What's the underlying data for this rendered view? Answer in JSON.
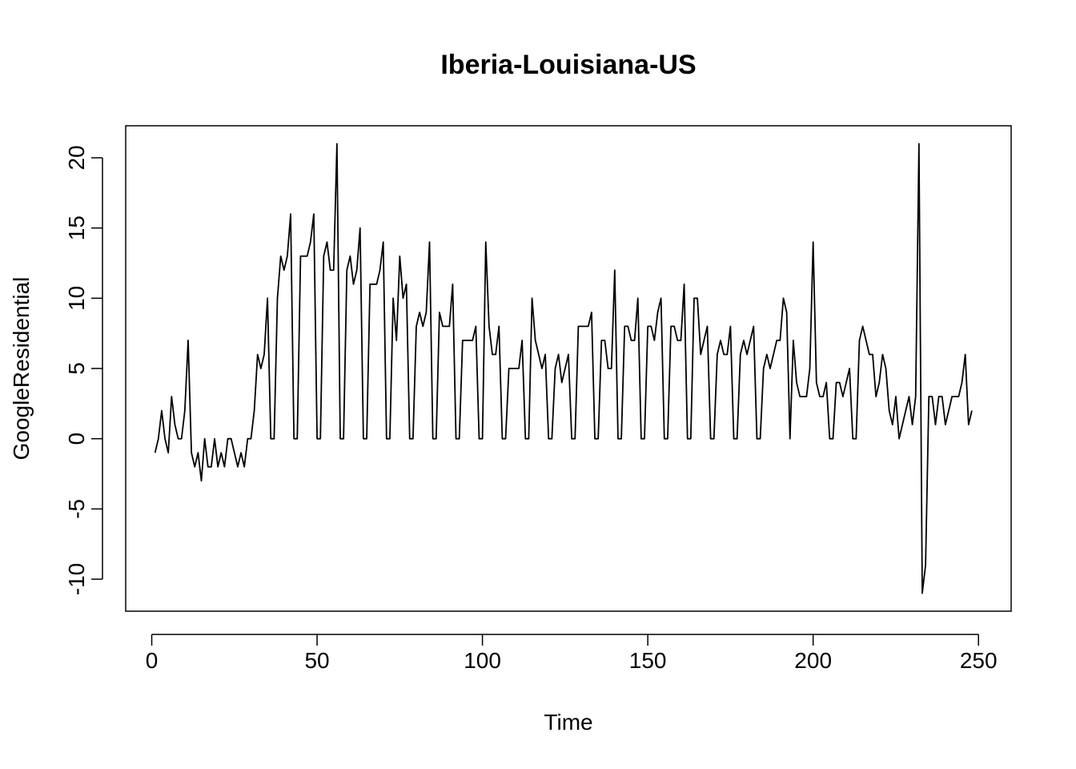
{
  "chart_data": {
    "type": "line",
    "title": "Iberia-Louisiana-US",
    "xlabel": "Time",
    "ylabel": "GoogleResidential",
    "xlim": [
      -7.88,
      259.88
    ],
    "ylim": [
      -12.28,
      22.28
    ],
    "x_ticks": [
      0,
      50,
      100,
      150,
      200,
      250
    ],
    "y_ticks": [
      -10,
      -5,
      0,
      5,
      10,
      15,
      20
    ],
    "grid": false,
    "legend": "none",
    "line_color": "#000000",
    "series": [
      {
        "x_start": 1,
        "values": [
          -1,
          0,
          2,
          0,
          -1,
          3,
          1,
          0,
          0,
          2,
          7,
          -1,
          -2,
          -1,
          -3,
          0,
          -2,
          -2,
          0,
          -2,
          -1,
          -2,
          0,
          0,
          -1,
          -2,
          -1,
          -2,
          0,
          0,
          2,
          6,
          5,
          6,
          10,
          0,
          0,
          10,
          13,
          12,
          13,
          16,
          0,
          0,
          13,
          13,
          13,
          14,
          16,
          0,
          0,
          13,
          14,
          12,
          12,
          21,
          0,
          0,
          12,
          13,
          11,
          12,
          15,
          0,
          0,
          11,
          11,
          11,
          12,
          14,
          0,
          0,
          10,
          7,
          13,
          10,
          11,
          0,
          0,
          8,
          9,
          8,
          9,
          14,
          0,
          0,
          9,
          8,
          8,
          8,
          11,
          0,
          0,
          7,
          7,
          7,
          7,
          8,
          0,
          0,
          14,
          8,
          6,
          6,
          8,
          0,
          0,
          5,
          5,
          5,
          5,
          7,
          0,
          0,
          10,
          7,
          6,
          5,
          6,
          0,
          0,
          5,
          6,
          4,
          5,
          6,
          0,
          0,
          8,
          8,
          8,
          8,
          9,
          0,
          0,
          7,
          7,
          5,
          5,
          12,
          0,
          0,
          8,
          8,
          7,
          7,
          10,
          0,
          0,
          8,
          8,
          7,
          9,
          10,
          0,
          0,
          8,
          8,
          7,
          7,
          11,
          0,
          0,
          10,
          10,
          6,
          7,
          8,
          0,
          0,
          6,
          7,
          6,
          6,
          8,
          0,
          0,
          6,
          7,
          6,
          7,
          8,
          0,
          0,
          5,
          6,
          5,
          6,
          7,
          7,
          10,
          9,
          0,
          7,
          4,
          3,
          3,
          3,
          5,
          14,
          4,
          3,
          3,
          4,
          0,
          0,
          4,
          4,
          3,
          4,
          5,
          0,
          0,
          7,
          8,
          7,
          6,
          6,
          3,
          4,
          6,
          5,
          2,
          1,
          3,
          0,
          1,
          2,
          3,
          1,
          3,
          21,
          -11,
          -9,
          3,
          3,
          1,
          3,
          3,
          1,
          2,
          3,
          3,
          3,
          4,
          6,
          1,
          2
        ]
      }
    ]
  }
}
